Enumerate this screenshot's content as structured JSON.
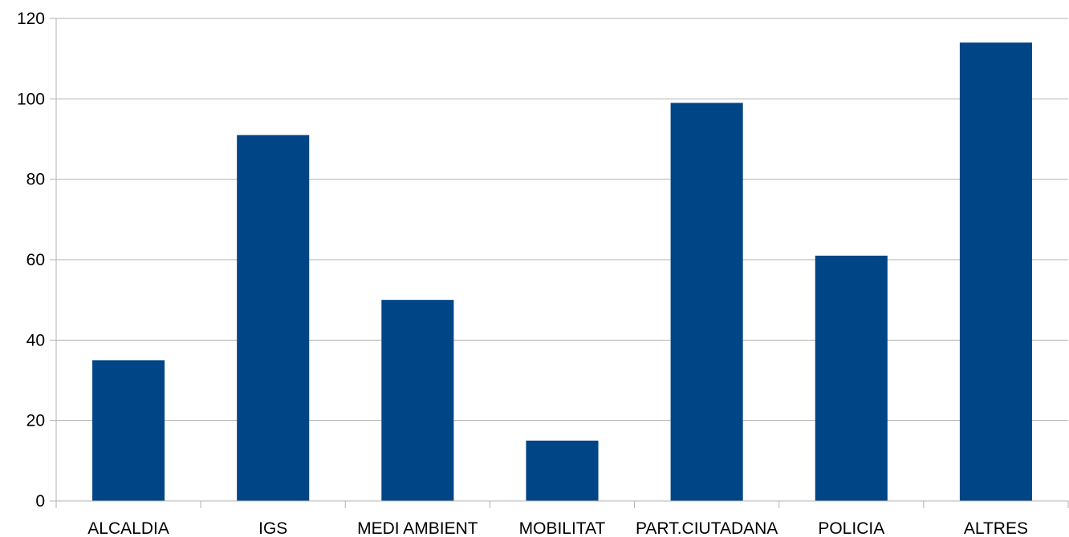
{
  "chart_data": {
    "type": "bar",
    "title": "",
    "xlabel": "",
    "ylabel": "",
    "categories": [
      "ALCALDIA",
      "IGS",
      "MEDI AMBIENT",
      "MOBILITAT",
      "PART.CIUTADANA",
      "POLICIA",
      "ALTRES"
    ],
    "values": [
      35,
      91,
      50,
      15,
      99,
      61,
      114
    ],
    "ylim": [
      0,
      120
    ],
    "yticks": [
      "0",
      "20",
      "40",
      "60",
      "80",
      "100",
      "120"
    ],
    "grid": true,
    "legend": "none",
    "bar_color": "#004586"
  }
}
